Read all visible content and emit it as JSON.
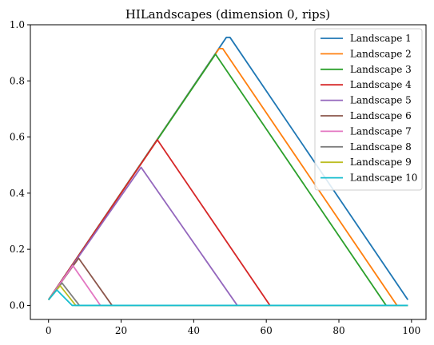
{
  "chart_data": {
    "type": "line",
    "title": "HILandscapes (dimension 0, rips)",
    "xlabel": "",
    "ylabel": "",
    "xlim": [
      -5,
      104
    ],
    "ylim": [
      -0.05,
      1.0
    ],
    "xticks": [
      0,
      20,
      40,
      60,
      80,
      100
    ],
    "yticks": [
      0.0,
      0.2,
      0.4,
      0.6,
      0.8,
      1.0
    ],
    "ytick_labels": [
      "0.0",
      "0.2",
      "0.4",
      "0.6",
      "0.8",
      "1.0"
    ],
    "legend_position": "top-right",
    "grid": false,
    "series": [
      {
        "name": "Landscape 1",
        "color": "#1f77b4",
        "x": [
          0,
          49,
          50,
          99
        ],
        "y": [
          0.02,
          0.955,
          0.955,
          0.02
        ]
      },
      {
        "name": "Landscape 2",
        "color": "#ff7f0e",
        "x": [
          0,
          47,
          48,
          96,
          99
        ],
        "y": [
          0.02,
          0.915,
          0.915,
          0.0,
          0.0
        ]
      },
      {
        "name": "Landscape 3",
        "color": "#2ca02c",
        "x": [
          0,
          46,
          93,
          99
        ],
        "y": [
          0.02,
          0.895,
          0.0,
          0.0
        ]
      },
      {
        "name": "Landscape 4",
        "color": "#d62728",
        "x": [
          0,
          30,
          61,
          99
        ],
        "y": [
          0.02,
          0.59,
          0.0,
          0.0
        ]
      },
      {
        "name": "Landscape 5",
        "color": "#9467bd",
        "x": [
          0,
          25.5,
          52,
          99
        ],
        "y": [
          0.02,
          0.492,
          0.0,
          0.0
        ]
      },
      {
        "name": "Landscape 6",
        "color": "#8c564b",
        "x": [
          0,
          8.3,
          17.5,
          99
        ],
        "y": [
          0.02,
          0.168,
          0.0,
          0.0
        ]
      },
      {
        "name": "Landscape 7",
        "color": "#e377c2",
        "x": [
          0,
          6.7,
          14.3,
          99
        ],
        "y": [
          0.02,
          0.142,
          0.0,
          0.0
        ]
      },
      {
        "name": "Landscape 8",
        "color": "#7f7f7f",
        "x": [
          0,
          3.7,
          8.5,
          99
        ],
        "y": [
          0.02,
          0.08,
          0.0,
          0.0
        ]
      },
      {
        "name": "Landscape 9",
        "color": "#bcbd22",
        "x": [
          0,
          3.2,
          7.5,
          99
        ],
        "y": [
          0.02,
          0.07,
          0.0,
          0.0
        ]
      },
      {
        "name": "Landscape 10",
        "color": "#17becf",
        "x": [
          0,
          2.3,
          6.5,
          99
        ],
        "y": [
          0.02,
          0.055,
          0.0,
          0.0
        ]
      }
    ]
  }
}
